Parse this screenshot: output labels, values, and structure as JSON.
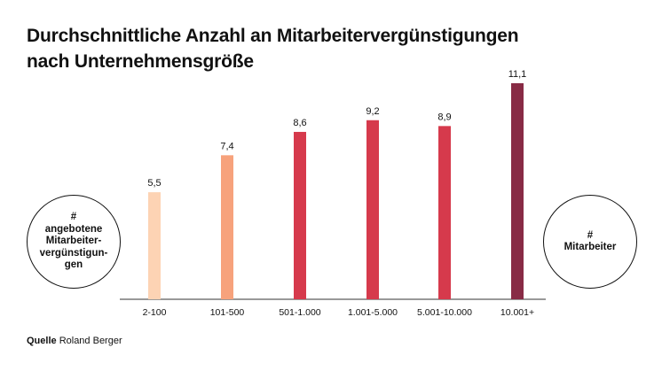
{
  "title": {
    "line1": "Durchschnittliche Anzahl an Mitarbeitervergünstigungen",
    "line2": "nach Unternehmensgröße"
  },
  "left_circle": {
    "symbol": "#",
    "lines": [
      "angebotene",
      "Mitarbeiter-",
      "vergünstigun-",
      "gen"
    ]
  },
  "right_circle": {
    "symbol": "#",
    "label": "Mitarbeiter"
  },
  "source": {
    "label": "Quelle",
    "text": "Roland Berger"
  },
  "chart_data": {
    "type": "bar",
    "title": "Durchschnittliche Anzahl an Mitarbeitervergünstigungen nach Unternehmensgröße",
    "xlabel": "Mitarbeiter",
    "ylabel": "angebotene Mitarbeitervergünstigungen",
    "categories": [
      "2-100",
      "101-500",
      "501-1.000",
      "1.001-5.000",
      "5.001-10.000",
      "10.001+"
    ],
    "values": [
      5.5,
      7.4,
      8.6,
      9.2,
      8.9,
      11.1
    ],
    "value_labels": [
      "5,5",
      "7,4",
      "8,6",
      "9,2",
      "8,9",
      "11,1"
    ],
    "colors": [
      "#fdd3b4",
      "#f7a27c",
      "#d63a4c",
      "#d63a4c",
      "#d63a4c",
      "#882b45"
    ],
    "ylim": [
      0,
      11.1
    ],
    "grid": false,
    "legend": "none"
  }
}
